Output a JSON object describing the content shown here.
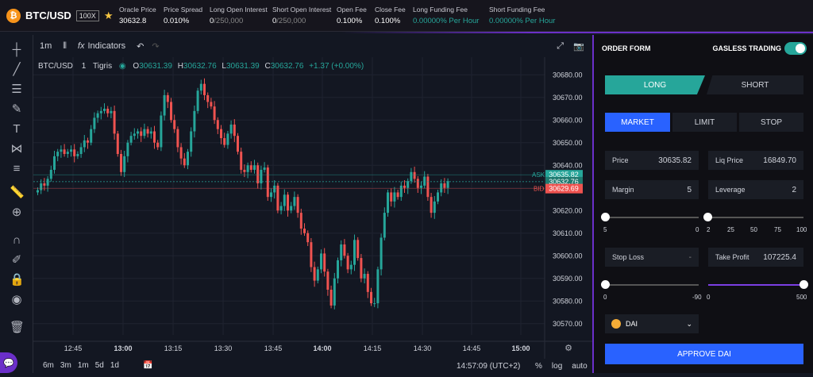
{
  "header": {
    "pair": "BTC/USD",
    "leverage": "100X",
    "stats": [
      {
        "label": "Oracle Price",
        "value": "30632.8"
      },
      {
        "label": "Price Spread",
        "value": "0.010%"
      },
      {
        "label": "Long Open Interest",
        "value": "0",
        "suffix": "/250,000"
      },
      {
        "label": "Short Open Interest",
        "value": "0",
        "suffix": "/250,000"
      },
      {
        "label": "Open Fee",
        "value": "0.100%"
      },
      {
        "label": "Close Fee",
        "value": "0.100%"
      },
      {
        "label": "Long Funding Fee",
        "value": "0.00000% Per Hour"
      },
      {
        "label": "Short Funding Fee",
        "value": "0.00000% Per Hour"
      }
    ]
  },
  "toolbar": {
    "interval": "1m",
    "indicators_label": "Indicators"
  },
  "legend": {
    "symbol": "BTC/USD",
    "interval": "1",
    "source": "Tigris",
    "o_label": "O",
    "o": "30631.39",
    "h_label": "H",
    "h": "30632.76",
    "l_label": "L",
    "l": "30631.39",
    "c_label": "C",
    "c": "30632.76",
    "change": "+1.37 (+0.00%)"
  },
  "chart_data": {
    "type": "candlestick",
    "ylim": [
      30565,
      30685
    ],
    "y_ticks": [
      "30680.00",
      "30670.00",
      "30660.00",
      "30650.00",
      "30640.00",
      "30630.00",
      "30620.00",
      "30610.00",
      "30600.00",
      "30590.00",
      "30580.00",
      "30570.00"
    ],
    "y_tick_values": [
      30680,
      30670,
      30660,
      30650,
      30640,
      30630,
      30620,
      30610,
      30600,
      30590,
      30580,
      30570
    ],
    "x_ticks": [
      "12:45",
      "13:00",
      "13:15",
      "13:30",
      "13:45",
      "14:00",
      "14:15",
      "14:30",
      "14:45",
      "15:00"
    ],
    "ask": {
      "label": "ASK",
      "value": "30635.82",
      "y": 30635.82
    },
    "last": {
      "value": "30632.76",
      "y": 30632.76
    },
    "bid": {
      "label": "BID",
      "value": "30629.69",
      "y": 30629.69
    },
    "closes": [
      30629,
      30632,
      30631,
      30634,
      30638,
      30644,
      30646,
      30647,
      30645,
      30646,
      30647,
      30644,
      30645,
      30648,
      30651,
      30650,
      30656,
      30661,
      30663,
      30664,
      30665,
      30663,
      30664,
      30654,
      30645,
      30637,
      30644,
      30650,
      30653,
      30654,
      30655,
      30653,
      30656,
      30654,
      30655,
      30650,
      30648,
      30662,
      30671,
      30668,
      30660,
      30656,
      30648,
      30643,
      30640,
      30646,
      30655,
      30664,
      30673,
      30676,
      30671,
      30668,
      30666,
      30660,
      30656,
      30652,
      30649,
      30654,
      30658,
      30653,
      30646,
      30638,
      30637,
      30640,
      30638,
      30640,
      30632,
      30638,
      30639,
      30626,
      30628,
      30631,
      30620,
      30622,
      30627,
      30620,
      30622,
      30626,
      30619,
      30612,
      30610,
      30606,
      30595,
      30589,
      30594,
      30601,
      30593,
      30585,
      30578,
      30590,
      30598,
      30605,
      30600,
      30594,
      30596,
      30607,
      30599,
      30590,
      30592,
      30584,
      30579,
      30579,
      30594,
      30608,
      30619,
      30628,
      30624,
      30628,
      30626,
      30631,
      30630,
      30633,
      30637,
      30634,
      30630,
      30631,
      30635,
      30626,
      30619,
      30624,
      30628,
      30632,
      30630,
      30633
    ]
  },
  "bottom": {
    "ranges": [
      "6m",
      "3m",
      "1m",
      "5d",
      "1d"
    ],
    "time": "14:57:09 (UTC+2)",
    "opts": [
      "%",
      "log",
      "auto"
    ]
  },
  "order": {
    "title": "ORDER FORM",
    "gasless_label": "GASLESS TRADING",
    "gasless_on": true,
    "long_label": "LONG",
    "short_label": "SHORT",
    "types": [
      "MARKET",
      "LIMIT",
      "STOP"
    ],
    "active_type": "MARKET",
    "price_label": "Price",
    "price": "30635.82",
    "liq_label": "Liq Price",
    "liq": "16849.70",
    "margin_label": "Margin",
    "margin": "5",
    "leverage_label": "Leverage",
    "leverage": "2",
    "margin_ticks": [
      "5",
      "0"
    ],
    "lev_ticks": [
      "2",
      "25",
      "50",
      "75",
      "100"
    ],
    "sl_label": "Stop Loss",
    "sl": "-",
    "tp_label": "Take Profit",
    "tp": "107225.4",
    "sl_ticks": [
      "0",
      "-90"
    ],
    "tp_ticks": [
      "0",
      "500"
    ],
    "token": "DAI",
    "approve_label": "APPROVE DAI"
  },
  "colors": {
    "up": "#26a69a",
    "down": "#ef5350",
    "accent": "#2962ff",
    "teal": "#26a69a"
  }
}
